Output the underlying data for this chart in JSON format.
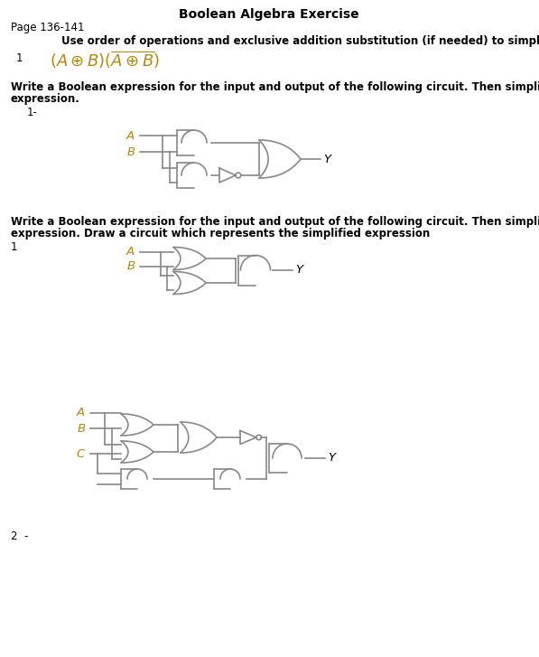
{
  "title": "Boolean Algebra Exercise",
  "page_label": "Page 136-141",
  "instruction1": "Use order of operations and exclusive addition substitution (if needed) to simplify.",
  "instruction2_line1": "Write a Boolean expression for the input and output of the following circuit. Then simplify the",
  "instruction2_line2": "expression.",
  "instruction3_line1": "Write a Boolean expression for the input and output of the following circuit. Then simplify the",
  "instruction3_line2": "expression. Draw a circuit which represents the simplified expression",
  "label_color": "#b8860b",
  "gate_color": "#888888",
  "gate_lw": 1.2,
  "bg_color": "#ffffff",
  "text_color": "#000000",
  "font_size_title": 10,
  "font_size_body": 8.5,
  "font_size_label": 9
}
